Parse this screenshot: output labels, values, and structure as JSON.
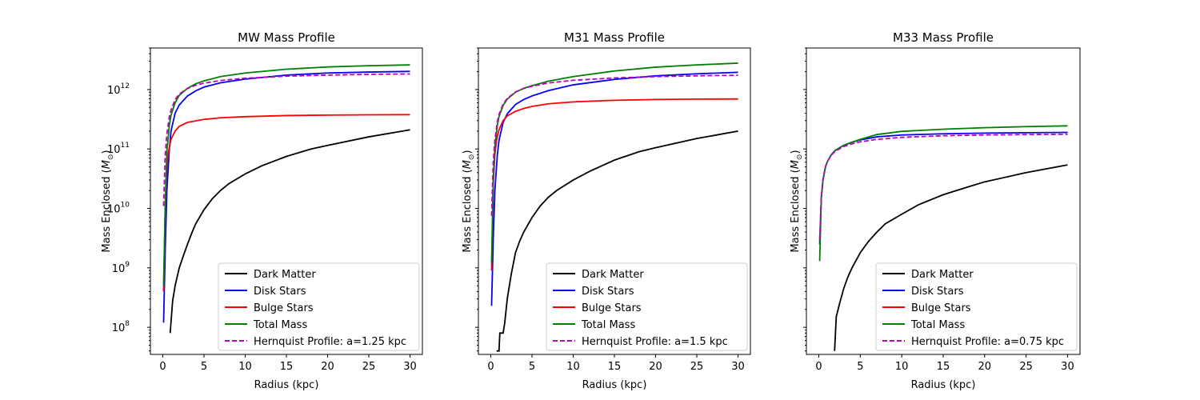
{
  "chart_data": [
    {
      "type": "line",
      "title": "MW Mass Profile",
      "xlabel": "Radius (kpc)",
      "ylabel": "Mass Enclosed (M_⊙)",
      "ylabel_main": "Mass Enclosed (",
      "ylabel_symbol": "M",
      "ylabel_sub": "⊙",
      "ylabel_close": ")",
      "xlim": [
        -1.5,
        31.5
      ],
      "ylim": [
        35000000.0,
        5000000000000.0
      ],
      "yscale": "log",
      "xticks": [
        "0",
        "5",
        "10",
        "15",
        "20",
        "25",
        "30"
      ],
      "yticks": [
        {
          "base": "10",
          "exp": "8"
        },
        {
          "base": "10",
          "exp": "9"
        },
        {
          "base": "10",
          "exp": "10"
        },
        {
          "base": "10",
          "exp": "11"
        },
        {
          "base": "10",
          "exp": "12"
        }
      ],
      "show_ytick_labels": true,
      "legend_position": "lower-right",
      "grid": false,
      "series": [
        {
          "name": "Dark Matter",
          "color": "#000000",
          "dash": "solid",
          "x": [
            0.9,
            1.2,
            1.5,
            2,
            2.5,
            3,
            3.5,
            4,
            5,
            6,
            7,
            8,
            10,
            12,
            15,
            18,
            20,
            25,
            30
          ],
          "y": [
            80000000.0,
            280000000.0,
            500000000.0,
            1000000000.0,
            1600000000.0,
            2500000000.0,
            3800000000.0,
            5500000000.0,
            9500000000.0,
            14500000000.0,
            20000000000.0,
            26000000000.0,
            38000000000.0,
            52000000000.0,
            75000000000.0,
            100000000000.0,
            115000000000.0,
            160000000000.0,
            210000000000.0
          ]
        },
        {
          "name": "Disk Stars",
          "color": "#0000ff",
          "dash": "solid",
          "x": [
            0.1,
            0.3,
            0.5,
            0.8,
            1,
            1.5,
            2,
            3,
            4,
            5,
            7,
            10,
            15,
            20,
            25,
            30
          ],
          "y": [
            120000000.0,
            2000000000.0,
            20000000000.0,
            100000000000.0,
            200000000000.0,
            400000000000.0,
            550000000000.0,
            780000000000.0,
            950000000000.0,
            1100000000000.0,
            1300000000000.0,
            1500000000000.0,
            1750000000000.0,
            1900000000000.0,
            1970000000000.0,
            2020000000000.0
          ]
        },
        {
          "name": "Bulge Stars",
          "color": "#ff0000",
          "dash": "solid",
          "x": [
            0.1,
            0.3,
            0.5,
            0.7,
            1,
            1.5,
            2,
            3,
            5,
            7,
            10,
            15,
            20,
            25,
            30
          ],
          "y": [
            400000000.0,
            10000000000.0,
            50000000000.0,
            90000000000.0,
            145000000000.0,
            200000000000.0,
            240000000000.0,
            280000000000.0,
            315000000000.0,
            335000000000.0,
            350000000000.0,
            365000000000.0,
            372000000000.0,
            376000000000.0,
            378000000000.0
          ]
        },
        {
          "name": "Total Mass",
          "color": "#008000",
          "dash": "solid",
          "x": [
            0.1,
            0.3,
            0.5,
            0.8,
            1,
            1.5,
            2,
            3,
            4,
            5,
            7,
            10,
            15,
            20,
            25,
            30
          ],
          "y": [
            500000000.0,
            12000000000.0,
            90000000000.0,
            250000000000.0,
            370000000000.0,
            600000000000.0,
            800000000000.0,
            1050000000000.0,
            1250000000000.0,
            1400000000000.0,
            1650000000000.0,
            1900000000000.0,
            2200000000000.0,
            2400000000000.0,
            2520000000000.0,
            2600000000000.0
          ]
        },
        {
          "name": "Hernquist Profile: a=1.25 kpc",
          "color": "#bf00bf",
          "dash": "dashed",
          "x": [
            0.1,
            0.3,
            0.5,
            0.8,
            1,
            1.5,
            2,
            3,
            4,
            5,
            7,
            10,
            15,
            20,
            25,
            30
          ],
          "y": [
            11000000000.0,
            80000000000.0,
            180000000000.0,
            350000000000.0,
            450000000000.0,
            680000000000.0,
            840000000000.0,
            1040000000000.0,
            1180000000000.0,
            1280000000000.0,
            1420000000000.0,
            1550000000000.0,
            1680000000000.0,
            1750000000000.0,
            1800000000000.0,
            1830000000000.0
          ]
        }
      ]
    },
    {
      "type": "line",
      "title": "M31 Mass Profile",
      "xlabel": "Radius (kpc)",
      "ylabel": "Mass Enclosed (M_⊙)",
      "ylabel_main": "Mass Enclosed (",
      "ylabel_symbol": "M",
      "ylabel_sub": "⊙",
      "ylabel_close": ")",
      "xlim": [
        -1.5,
        31.5
      ],
      "ylim": [
        35000000.0,
        5000000000000.0
      ],
      "yscale": "log",
      "xticks": [
        "0",
        "5",
        "10",
        "15",
        "20",
        "25",
        "30"
      ],
      "yticks": [],
      "show_ytick_labels": false,
      "legend_position": "lower-right",
      "grid": false,
      "series": [
        {
          "name": "Dark Matter",
          "color": "#000000",
          "dash": "solid",
          "x": [
            0.7,
            1,
            1.1,
            1.5,
            1.7,
            2,
            2.5,
            3,
            3.5,
            4,
            5,
            6,
            7,
            8,
            10,
            12,
            15,
            18,
            20,
            25,
            30
          ],
          "y": [
            40000000.0,
            40000000.0,
            80000000.0,
            80000000.0,
            120000000.0,
            300000000.0,
            800000000.0,
            1800000000.0,
            2800000000.0,
            4000000000.0,
            7000000000.0,
            11000000000.0,
            15500000000.0,
            20000000000.0,
            30000000000.0,
            42000000000.0,
            65000000000.0,
            90000000000.0,
            105000000000.0,
            150000000000.0,
            200000000000.0
          ]
        },
        {
          "name": "Disk Stars",
          "color": "#0000ff",
          "dash": "solid",
          "x": [
            0.1,
            0.3,
            0.5,
            0.8,
            1,
            1.5,
            2,
            3,
            4,
            5,
            7,
            10,
            15,
            20,
            25,
            30
          ],
          "y": [
            230000000.0,
            3000000000.0,
            20000000000.0,
            80000000000.0,
            140000000000.0,
            280000000000.0,
            390000000000.0,
            560000000000.0,
            680000000000.0,
            780000000000.0,
            960000000000.0,
            1200000000000.0,
            1480000000000.0,
            1700000000000.0,
            1840000000000.0,
            1950000000000.0
          ]
        },
        {
          "name": "Bulge Stars",
          "color": "#ff0000",
          "dash": "solid",
          "x": [
            0.1,
            0.3,
            0.5,
            0.7,
            1,
            1.5,
            2,
            3,
            4,
            5,
            7,
            10,
            15,
            20,
            25,
            30
          ],
          "y": [
            900000000.0,
            25000000000.0,
            80000000000.0,
            140000000000.0,
            210000000000.0,
            300000000000.0,
            360000000000.0,
            430000000000.0,
            480000000000.0,
            520000000000.0,
            575000000000.0,
            620000000000.0,
            660000000000.0,
            680000000000.0,
            690000000000.0,
            695000000000.0
          ]
        },
        {
          "name": "Total Mass",
          "color": "#008000",
          "dash": "solid",
          "x": [
            0.1,
            0.3,
            0.5,
            0.8,
            1,
            1.5,
            2,
            3,
            4,
            5,
            7,
            10,
            15,
            20,
            25,
            30
          ],
          "y": [
            1200000000.0,
            30000000000.0,
            110000000000.0,
            250000000000.0,
            350000000000.0,
            540000000000.0,
            690000000000.0,
            900000000000.0,
            1050000000000.0,
            1160000000000.0,
            1380000000000.0,
            1650000000000.0,
            2050000000000.0,
            2380000000000.0,
            2600000000000.0,
            2780000000000.0
          ]
        },
        {
          "name": "Hernquist Profile: a=1.5 kpc",
          "color": "#bf00bf",
          "dash": "dashed",
          "x": [
            0.1,
            0.3,
            0.5,
            0.8,
            1,
            1.5,
            2,
            3,
            4,
            5,
            7,
            10,
            15,
            20,
            25,
            30
          ],
          "y": [
            7500000000.0,
            60000000000.0,
            140000000000.0,
            290000000000.0,
            380000000000.0,
            570000000000.0,
            710000000000.0,
            910000000000.0,
            1040000000000.0,
            1140000000000.0,
            1290000000000.0,
            1430000000000.0,
            1570000000000.0,
            1650000000000.0,
            1700000000000.0,
            1740000000000.0
          ]
        }
      ]
    },
    {
      "type": "line",
      "title": "M33 Mass Profile",
      "xlabel": "Radius (kpc)",
      "ylabel": "Mass Enclosed (M_⊙)",
      "ylabel_main": "Mass Enclosed (",
      "ylabel_symbol": "M",
      "ylabel_sub": "⊙",
      "ylabel_close": ")",
      "xlim": [
        -1.5,
        31.5
      ],
      "ylim": [
        35000000.0,
        5000000000000.0
      ],
      "yscale": "log",
      "xticks": [
        "0",
        "5",
        "10",
        "15",
        "20",
        "25",
        "30"
      ],
      "yticks": [],
      "show_ytick_labels": false,
      "legend_position": "lower-right",
      "grid": false,
      "series": [
        {
          "name": "Dark Matter",
          "color": "#000000",
          "dash": "solid",
          "x": [
            1.9,
            2.1,
            2.5,
            3,
            3.5,
            4,
            5,
            6,
            7,
            8,
            10,
            12,
            15,
            18,
            20,
            25,
            30
          ],
          "y": [
            40000000.0,
            150000000.0,
            250000000.0,
            450000000.0,
            700000000.0,
            1000000000.0,
            1800000000.0,
            2800000000.0,
            4000000000.0,
            5500000000.0,
            8000000000.0,
            11500000000.0,
            17000000000.0,
            23000000000.0,
            28000000000.0,
            40000000000.0,
            54000000000.0
          ]
        },
        {
          "name": "Disk Stars",
          "color": "#0000ff",
          "dash": "solid",
          "x": [
            0.1,
            0.3,
            0.5,
            0.8,
            1,
            1.5,
            2,
            3,
            4,
            5,
            7,
            10,
            15,
            20,
            25,
            30
          ],
          "y": [
            2500000000.0,
            15000000000.0,
            30000000000.0,
            50000000000.0,
            60000000000.0,
            80000000000.0,
            95000000000.0,
            115000000000.0,
            130000000000.0,
            142000000000.0,
            160000000000.0,
            172000000000.0,
            180000000000.0,
            185000000000.0,
            188000000000.0,
            190000000000.0
          ]
        },
        {
          "name": "Total Mass",
          "color": "#008000",
          "dash": "solid",
          "x": [
            0.1,
            0.3,
            0.5,
            0.8,
            1,
            1.5,
            2,
            3,
            4,
            5,
            7,
            10,
            15,
            20,
            25,
            30
          ],
          "y": [
            1300000000.0,
            15000000000.0,
            30000000000.0,
            50000000000.0,
            60000000000.0,
            80000000000.0,
            95000000000.0,
            115000000000.0,
            130000000000.0,
            145000000000.0,
            175000000000.0,
            198000000000.0,
            215000000000.0,
            228000000000.0,
            238000000000.0,
            245000000000.0
          ]
        },
        {
          "name": "Hernquist Profile: a=0.75 kpc",
          "color": "#bf00bf",
          "dash": "dashed",
          "x": [
            0.1,
            0.3,
            0.5,
            0.8,
            1,
            1.5,
            2,
            3,
            4,
            5,
            7,
            10,
            15,
            20,
            25,
            30
          ],
          "y": [
            3000000000.0,
            16000000000.0,
            31000000000.0,
            50000000000.0,
            60000000000.0,
            79000000000.0,
            92000000000.0,
            110000000000.0,
            122000000000.0,
            132000000000.0,
            145000000000.0,
            157000000000.0,
            167000000000.0,
            172000000000.0,
            175000000000.0,
            177000000000.0
          ]
        }
      ],
      "legend": [
        {
          "name": "Dark Matter",
          "color": "#000000",
          "dash": "solid"
        },
        {
          "name": "Disk Stars",
          "color": "#0000ff",
          "dash": "solid"
        },
        {
          "name": "Bulge Stars",
          "color": "#ff0000",
          "dash": "solid"
        },
        {
          "name": "Total Mass",
          "color": "#008000",
          "dash": "solid"
        },
        {
          "name": "Hernquist Profile: a=0.75 kpc",
          "color": "#bf00bf",
          "dash": "dashed"
        }
      ]
    }
  ]
}
